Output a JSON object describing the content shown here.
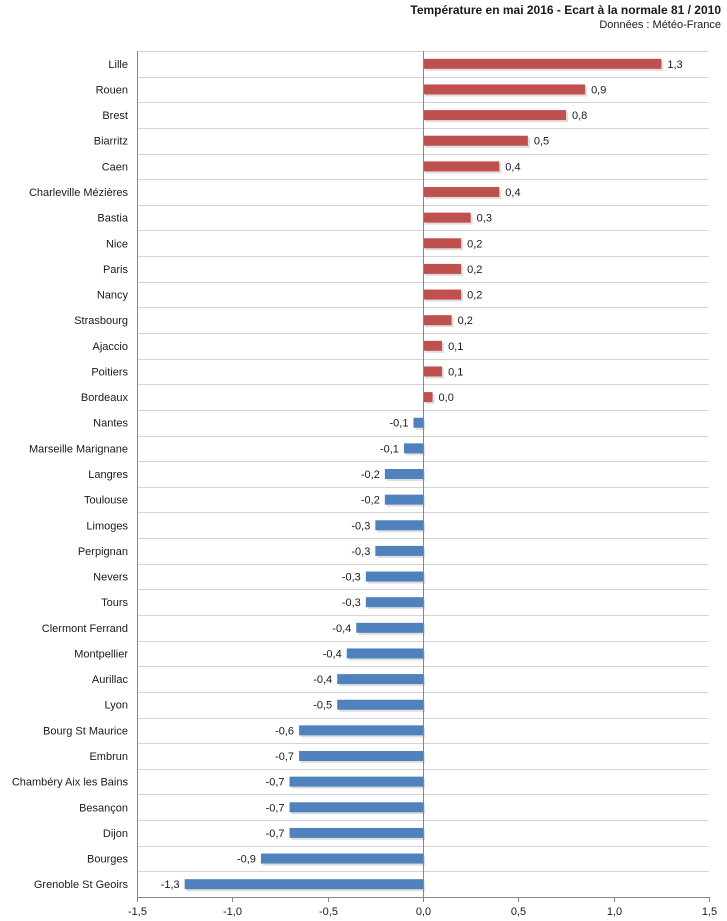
{
  "chart_data": {
    "type": "bar",
    "orientation": "horizontal",
    "title": "Température en mai 2016 - Ecart à la normale 81 / 2010",
    "subtitle": "Données : Météo-France",
    "xlabel": "",
    "ylabel": "",
    "xlim": [
      -1.5,
      1.5
    ],
    "x_ticks": [
      "-1,5",
      "-1,0",
      "-0,5",
      "0,0",
      "0,5",
      "1,0",
      "1,5"
    ],
    "x_tick_values": [
      -1.5,
      -1.0,
      -0.5,
      0.0,
      0.5,
      1.0,
      1.5
    ],
    "grid": "horizontal",
    "colors": {
      "positive": "#c0504d",
      "negative": "#4f81bd",
      "grid": "#d4d4d4",
      "axis": "#868686",
      "text": "#1a1a1a"
    },
    "categories": [
      "Lille",
      "Rouen",
      "Brest",
      "Biarritz",
      "Caen",
      "Charleville Mézières",
      "Bastia",
      "Nice",
      "Paris",
      "Nancy",
      "Strasbourg",
      "Ajaccio",
      "Poitiers",
      "Bordeaux",
      "Nantes",
      "Marseille Marignane",
      "Langres",
      "Toulouse",
      "Limoges",
      "Perpignan",
      "Nevers",
      "Tours",
      "Clermont Ferrand",
      "Montpellier",
      "Aurillac",
      "Lyon",
      "Bourg St Maurice",
      "Embrun",
      "Chambéry Aix les Bains",
      "Besançon",
      "Dijon",
      "Bourges",
      "Grenoble St Geoirs"
    ],
    "values": [
      1.25,
      0.85,
      0.75,
      0.55,
      0.4,
      0.4,
      0.25,
      0.2,
      0.2,
      0.2,
      0.15,
      0.1,
      0.1,
      0.05,
      -0.05,
      -0.1,
      -0.2,
      -0.2,
      -0.25,
      -0.25,
      -0.3,
      -0.3,
      -0.35,
      -0.4,
      -0.45,
      -0.45,
      -0.65,
      -0.65,
      -0.7,
      -0.7,
      -0.7,
      -0.85,
      -1.25
    ],
    "labels": [
      "1,3",
      "0,9",
      "0,8",
      "0,5",
      "0,4",
      "0,4",
      "0,3",
      "0,2",
      "0,2",
      "0,2",
      "0,2",
      "0,1",
      "0,1",
      "0,0",
      "-0,1",
      "-0,1",
      "-0,2",
      "-0,2",
      "-0,3",
      "-0,3",
      "-0,3",
      "-0,3",
      "-0,4",
      "-0,4",
      "-0,4",
      "-0,5",
      "-0,6",
      "-0,7",
      "-0,7",
      "-0,7",
      "-0,7",
      "-0,9",
      "-1,3"
    ]
  }
}
